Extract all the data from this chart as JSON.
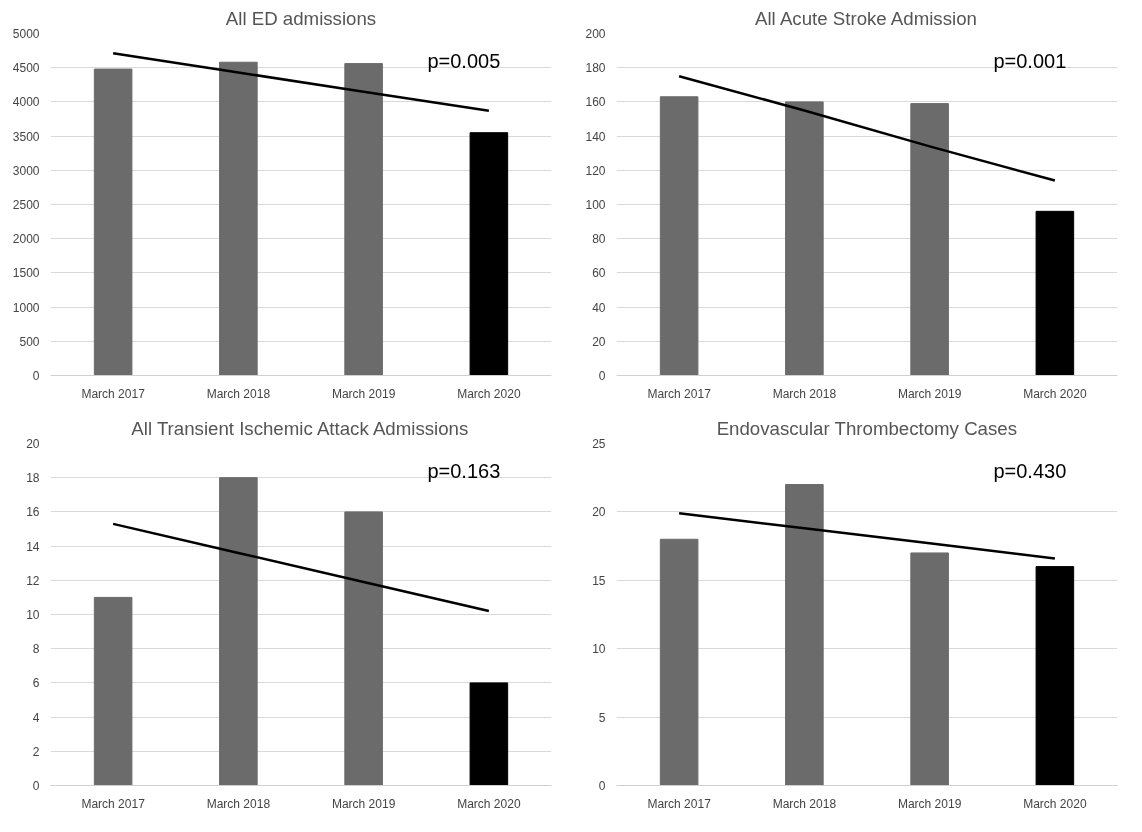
{
  "chart_data": [
    {
      "type": "bar",
      "title": "All ED admissions",
      "categories": [
        "March 2017",
        "March 2018",
        "March 2019",
        "March 2020"
      ],
      "ylim": [
        0,
        5000
      ],
      "yticks": [
        0,
        500,
        1000,
        1500,
        2000,
        2500,
        3000,
        3500,
        4000,
        4500,
        5000
      ],
      "grid": "y",
      "annotations": [
        "p=0.005"
      ],
      "series": [
        {
          "colors": [
            "#6b6b6b",
            "#6b6b6b",
            "#6b6b6b",
            "#000000"
          ],
          "values": [
            4480,
            4580,
            4560,
            3550
          ]
        },
        {
          "type": "line",
          "color": "#000000",
          "values": [
            4710,
            4430,
            4150,
            3870
          ]
        }
      ]
    },
    {
      "type": "bar",
      "title": "All Acute Stroke Admission",
      "categories": [
        "March 2017",
        "March 2018",
        "March 2019",
        "March 2020"
      ],
      "ylim": [
        0,
        200
      ],
      "yticks": [
        0,
        20,
        40,
        60,
        80,
        100,
        120,
        140,
        160,
        180,
        200
      ],
      "grid": "y",
      "annotations": [
        "p=0.001"
      ],
      "series": [
        {
          "colors": [
            "#6b6b6b",
            "#6b6b6b",
            "#6b6b6b",
            "#000000"
          ],
          "values": [
            163,
            160,
            159,
            96
          ]
        },
        {
          "type": "line",
          "color": "#000000",
          "values": [
            175,
            155,
            134,
            114
          ]
        }
      ]
    },
    {
      "type": "bar",
      "title": "All Transient Ischemic Attack Admissions",
      "categories": [
        "March 2017",
        "March 2018",
        "March 2019",
        "March 2020"
      ],
      "ylim": [
        0,
        20
      ],
      "yticks": [
        0,
        2,
        4,
        6,
        8,
        10,
        12,
        14,
        16,
        18,
        20
      ],
      "grid": "y",
      "annotations": [
        "p=0.163"
      ],
      "series": [
        {
          "colors": [
            "#6b6b6b",
            "#6b6b6b",
            "#6b6b6b",
            "#000000"
          ],
          "values": [
            11,
            18,
            16,
            6
          ]
        },
        {
          "type": "line",
          "color": "#000000",
          "values": [
            15.3,
            13.6,
            11.9,
            10.2
          ]
        }
      ]
    },
    {
      "type": "bar",
      "title": "Endovascular Thrombectomy Cases",
      "categories": [
        "March 2017",
        "March 2018",
        "March 2019",
        "March 2020"
      ],
      "ylim": [
        0,
        25
      ],
      "yticks": [
        0,
        5,
        10,
        15,
        20,
        25
      ],
      "grid": "y",
      "annotations": [
        "p=0.430"
      ],
      "series": [
        {
          "colors": [
            "#6b6b6b",
            "#6b6b6b",
            "#6b6b6b",
            "#000000"
          ],
          "values": [
            18,
            22,
            17,
            16
          ]
        },
        {
          "type": "line",
          "color": "#000000",
          "values": [
            19.9,
            18.8,
            17.7,
            16.6
          ]
        }
      ]
    }
  ]
}
